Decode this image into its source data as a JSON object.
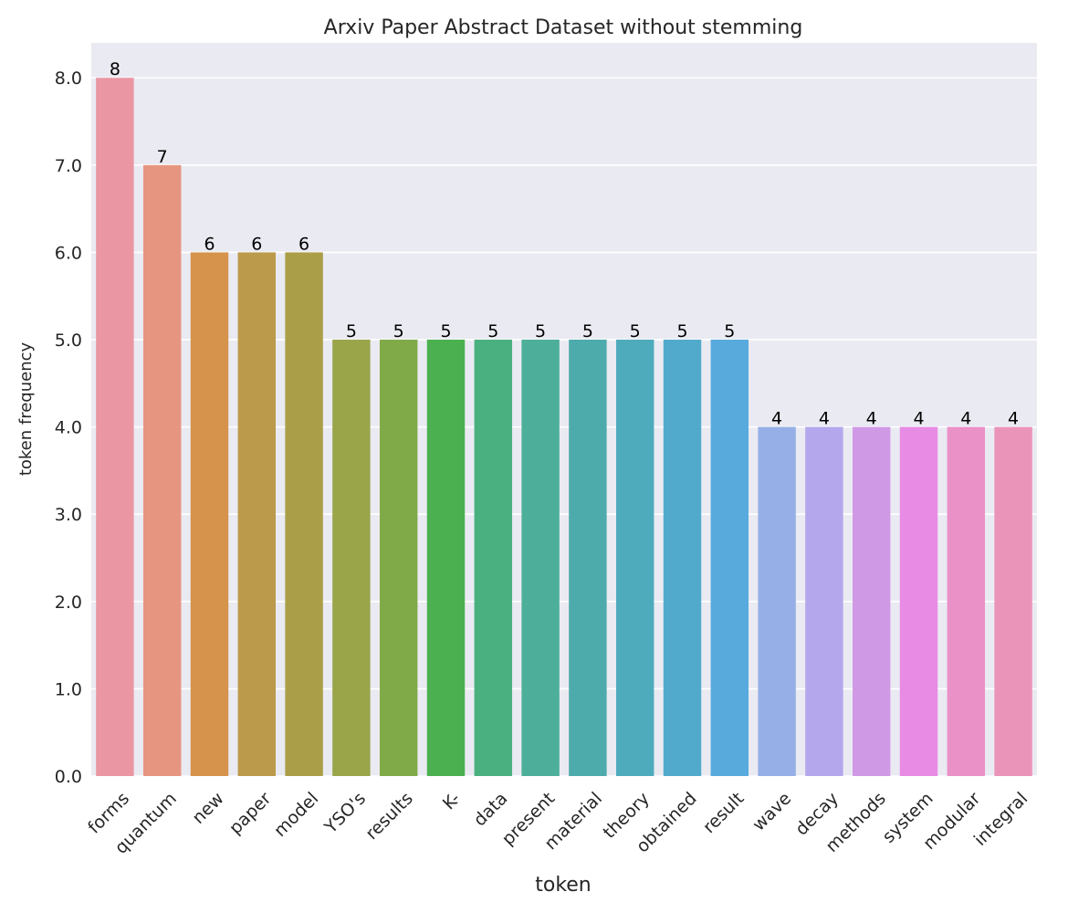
{
  "chart_data": {
    "type": "bar",
    "title": "Arxiv Paper Abstract Dataset without stemming",
    "xlabel": "token",
    "ylabel": "token frequency",
    "ylim": [
      0,
      8.4
    ],
    "yticks": [
      "0.0",
      "1.0",
      "2.0",
      "3.0",
      "4.0",
      "5.0",
      "6.0",
      "7.0",
      "8.0"
    ],
    "grid": true,
    "background": "#eaeaf2",
    "categories": [
      "forms",
      "quantum",
      "new",
      "paper",
      "model",
      "YSO's",
      "results",
      "K-",
      "data",
      "present",
      "material",
      "theory",
      "obtained",
      "result",
      "wave",
      "decay",
      "methods",
      "system",
      "modular",
      "integral"
    ],
    "values": [
      8,
      7,
      6,
      6,
      6,
      5,
      5,
      5,
      5,
      5,
      5,
      5,
      5,
      5,
      4,
      4,
      4,
      4,
      4,
      4
    ],
    "data_labels": [
      "8",
      "7",
      "6",
      "6",
      "6",
      "5",
      "5",
      "5",
      "5",
      "5",
      "5",
      "5",
      "5",
      "5",
      "4",
      "4",
      "4",
      "4",
      "4",
      "4"
    ],
    "colors": [
      "#ea96a3",
      "#e69680",
      "#d5934b",
      "#bb9a4b",
      "#aa9e48",
      "#9aa449",
      "#80aa48",
      "#4bb04f",
      "#4bb080",
      "#4daf99",
      "#4dabab",
      "#4eabbc",
      "#51aacb",
      "#58aadc",
      "#96afe6",
      "#b4a7ec",
      "#d099e6",
      "#e78be4",
      "#ea91c7",
      "#ea94b9"
    ]
  }
}
